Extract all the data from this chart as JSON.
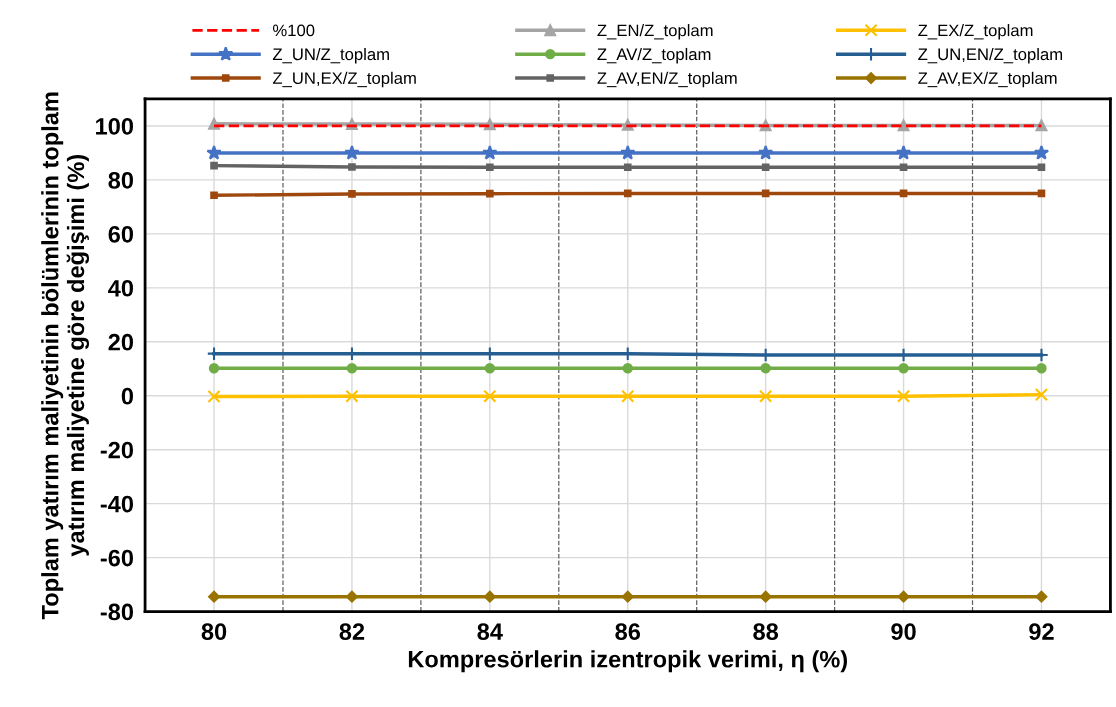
{
  "chart_data": {
    "type": "line",
    "xlabel": "Kompresörlerin izentropik verimi, η (%)",
    "ylabel": "Toplam yatırım maliyetinin bölümlerinin toplam\nyatırım maliyetine göre değişimi (%)",
    "x": [
      80,
      82,
      84,
      86,
      88,
      90,
      92
    ],
    "xlim": [
      79,
      93
    ],
    "xticks": [
      80,
      82,
      84,
      86,
      88,
      90,
      92
    ],
    "ylim": [
      -80,
      110
    ],
    "yticks": [
      -80,
      -60,
      -40,
      -20,
      0,
      20,
      40,
      60,
      80,
      100
    ],
    "grid": true,
    "legend": "top",
    "ref_lines": [
      {
        "axis": "x",
        "value": 81,
        "label": null,
        "color": "#606060",
        "line_style": "dashed"
      },
      {
        "axis": "x",
        "value": 83,
        "label": null,
        "color": "#606060",
        "line_style": "dashed"
      },
      {
        "axis": "x",
        "value": 85,
        "label": null,
        "color": "#606060",
        "line_style": "dashed"
      },
      {
        "axis": "x",
        "value": 87,
        "label": null,
        "color": "#606060",
        "line_style": "dashed"
      },
      {
        "axis": "x",
        "value": 89,
        "label": null,
        "color": "#606060",
        "line_style": "dashed"
      },
      {
        "axis": "x",
        "value": 91,
        "label": null,
        "color": "#606060",
        "line_style": "dashed"
      }
    ],
    "series": [
      {
        "name": "%100",
        "color": "#ff0000",
        "line_style": "dashed",
        "marker": "none",
        "values": [
          100,
          100,
          100,
          100,
          100,
          100,
          100
        ]
      },
      {
        "name": "Z_EN/Z_toplam",
        "color": "#a5a5a5",
        "marker": "triangle",
        "values": [
          100.8,
          100.7,
          100.6,
          100.4,
          100.2,
          100.2,
          100.2
        ]
      },
      {
        "name": "Z_EX/Z_toplam",
        "color": "#ffc000",
        "marker": "cross",
        "values": [
          -0.3,
          -0.2,
          -0.2,
          -0.2,
          -0.2,
          -0.2,
          0.4
        ]
      },
      {
        "name": "Z_UN/Z_toplam",
        "color": "#4472c4",
        "marker": "star",
        "values": [
          90,
          90,
          90,
          90,
          90,
          90,
          90
        ]
      },
      {
        "name": "Z_AV/Z_toplam",
        "color": "#70ad47",
        "marker": "circle",
        "values": [
          10.2,
          10.2,
          10.2,
          10.2,
          10.2,
          10.2,
          10.2
        ]
      },
      {
        "name": "Z_UN,EN/Z_toplam",
        "color": "#255e91",
        "marker": "plus",
        "values": [
          15.6,
          15.6,
          15.6,
          15.6,
          15.1,
          15.1,
          15.1
        ]
      },
      {
        "name": "Z_UN,EX/Z_toplam",
        "color": "#9e480e",
        "marker": "square",
        "values": [
          74.3,
          74.8,
          74.9,
          75,
          75,
          75,
          75
        ]
      },
      {
        "name": "Z_AV,EN/Z_toplam",
        "color": "#636363",
        "marker": "square",
        "values": [
          85.3,
          84.8,
          84.7,
          84.7,
          84.7,
          84.7,
          84.7
        ]
      },
      {
        "name": "Z_AV,EX/Z_toplam",
        "color": "#997300",
        "marker": "diamond",
        "values": [
          -74.5,
          -74.5,
          -74.5,
          -74.5,
          -74.5,
          -74.5,
          -74.5
        ]
      }
    ]
  }
}
